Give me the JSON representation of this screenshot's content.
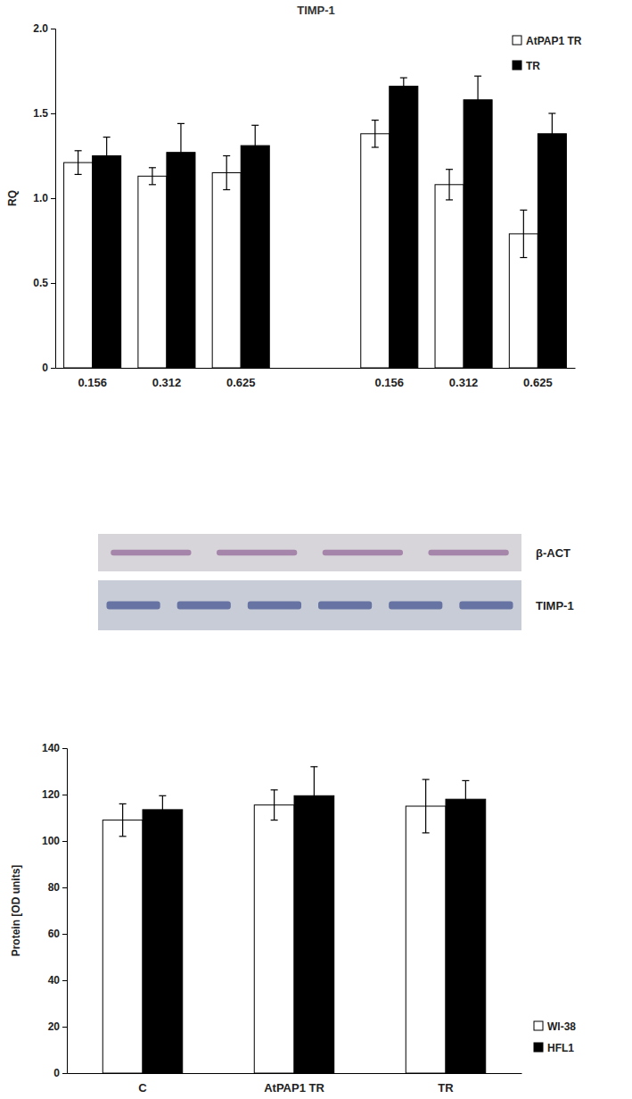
{
  "chart_data": [
    {
      "type": "bar",
      "title": "TIMP-1",
      "y_label": "RQ",
      "categories": [
        "0.156",
        "0.312",
        "0.625",
        null,
        "0.156",
        "0.312",
        "0.625"
      ],
      "series": [
        {
          "name": "AtPAP1 TR",
          "color": "#ffffff",
          "values": [
            1.21,
            1.13,
            1.15,
            null,
            1.38,
            1.08,
            0.79
          ],
          "errors": [
            0.07,
            0.05,
            0.1,
            null,
            0.08,
            0.09,
            0.14
          ]
        },
        {
          "name": "TR",
          "color": "#000000",
          "values": [
            1.25,
            1.27,
            1.31,
            null,
            1.66,
            1.58,
            1.38
          ],
          "errors": [
            0.11,
            0.17,
            0.12,
            null,
            0.05,
            0.14,
            0.12
          ]
        }
      ],
      "ylim": [
        0,
        2
      ],
      "yticks": [
        0,
        0.5,
        {
          "value": 1,
          "label": "1.0"
        },
        1.5,
        {
          "value": 2,
          "label": "2.0"
        }
      ],
      "legend": "upper right"
    },
    {
      "type": "bar",
      "y_label": "Protein [OD units]",
      "annotations": [
        "β-ACT",
        "TIMP-1"
      ],
      "categories": [
        "C",
        "AtPAP1 TR",
        "TR"
      ],
      "series": [
        {
          "name": "WI-38",
          "color": "#ffffff",
          "values": [
            109,
            115.5,
            115
          ],
          "errors": [
            7,
            6.5,
            11.5
          ]
        },
        {
          "name": "HFL1",
          "color": "#000000",
          "values": [
            113.5,
            119.5,
            118
          ],
          "errors": [
            6,
            12.5,
            8
          ]
        }
      ],
      "ylim": [
        0,
        140
      ],
      "yticks": [
        0,
        20,
        40,
        60,
        80,
        100,
        120,
        140
      ],
      "legend": "right"
    }
  ]
}
